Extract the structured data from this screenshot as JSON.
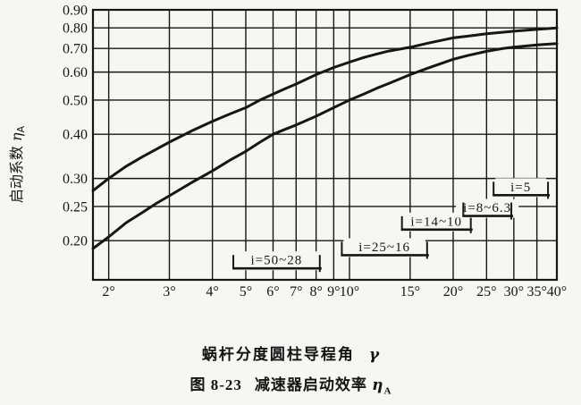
{
  "figure": {
    "caption_number": "图 8-23",
    "caption_title": "减速器启动效率",
    "caption_symbol": "η",
    "caption_symbol_sub": "A"
  },
  "chart_data": {
    "type": "line",
    "title": "减速器启动效率 ηA",
    "grid": true,
    "x_axis": {
      "title": "蜗杆分度圆柱导程角",
      "title_symbol": "γ",
      "scale": "log",
      "range": [
        1.8,
        40
      ],
      "ticks": [
        2,
        3,
        4,
        5,
        6,
        7,
        8,
        9,
        10,
        15,
        20,
        25,
        30,
        35,
        40
      ],
      "tick_labels": [
        "2°",
        "3°",
        "4°",
        "5°",
        "6°",
        "7°",
        "8°",
        "9°",
        "10°",
        "15°",
        "20°",
        "25°",
        "30°",
        "35°",
        "40°"
      ]
    },
    "y_axis": {
      "title": "启动系数",
      "symbol": "η",
      "symbol_sub": "A",
      "scale": "log",
      "range": [
        0.155,
        0.9
      ],
      "ticks": [
        0.9,
        0.8,
        0.7,
        0.6,
        0.5,
        0.4,
        0.3,
        0.25,
        0.2
      ],
      "tick_labels": [
        "0.90",
        "0.80",
        "0.70",
        "0.60",
        "0.50",
        "0.40",
        "0.30",
        "0.25",
        "0.20"
      ]
    },
    "series": [
      {
        "name": "upper-curve",
        "points": [
          [
            1.8,
            0.277
          ],
          [
            2,
            0.3
          ],
          [
            2.25,
            0.325
          ],
          [
            2.5,
            0.345
          ],
          [
            2.75,
            0.363
          ],
          [
            3,
            0.38
          ],
          [
            3.5,
            0.41
          ],
          [
            4,
            0.435
          ],
          [
            4.5,
            0.457
          ],
          [
            5,
            0.476
          ],
          [
            5.5,
            0.5
          ],
          [
            6,
            0.52
          ],
          [
            6.5,
            0.538
          ],
          [
            7,
            0.555
          ],
          [
            8,
            0.59
          ],
          [
            9,
            0.618
          ],
          [
            10,
            0.64
          ],
          [
            11,
            0.66
          ],
          [
            12,
            0.675
          ],
          [
            13,
            0.688
          ],
          [
            15,
            0.705
          ],
          [
            17,
            0.725
          ],
          [
            20,
            0.75
          ],
          [
            22,
            0.758
          ],
          [
            25,
            0.77
          ],
          [
            28,
            0.778
          ],
          [
            30,
            0.783
          ],
          [
            35,
            0.792
          ],
          [
            40,
            0.8
          ]
        ]
      },
      {
        "name": "lower-curve",
        "points": [
          [
            1.8,
            0.19
          ],
          [
            2,
            0.205
          ],
          [
            2.25,
            0.225
          ],
          [
            2.5,
            0.24
          ],
          [
            2.75,
            0.255
          ],
          [
            3,
            0.268
          ],
          [
            3.5,
            0.293
          ],
          [
            4,
            0.315
          ],
          [
            4.5,
            0.338
          ],
          [
            5,
            0.358
          ],
          [
            5.5,
            0.38
          ],
          [
            6,
            0.4
          ],
          [
            6.5,
            0.413
          ],
          [
            7,
            0.425
          ],
          [
            8,
            0.45
          ],
          [
            9,
            0.476
          ],
          [
            10,
            0.5
          ],
          [
            11,
            0.52
          ],
          [
            12,
            0.54
          ],
          [
            13,
            0.557
          ],
          [
            15,
            0.59
          ],
          [
            17,
            0.617
          ],
          [
            20,
            0.652
          ],
          [
            22,
            0.668
          ],
          [
            25,
            0.687
          ],
          [
            28,
            0.7
          ],
          [
            30,
            0.706
          ],
          [
            35,
            0.716
          ],
          [
            40,
            0.722
          ]
        ]
      }
    ],
    "annotations": [
      {
        "label": "i=50~28",
        "gamma_from": 4.6,
        "gamma_to": 8.2,
        "eta_level": 0.167
      },
      {
        "label": "i=25~16",
        "gamma_from": 9.5,
        "gamma_to": 16.8,
        "eta_level": 0.182
      },
      {
        "label": "i=14~10",
        "gamma_from": 14.2,
        "gamma_to": 22.5,
        "eta_level": 0.215
      },
      {
        "label": "i=8~6.3",
        "gamma_from": 21.4,
        "gamma_to": 29.5,
        "eta_level": 0.235
      },
      {
        "label": "i=5",
        "gamma_from": 26.2,
        "gamma_to": 37.7,
        "eta_level": 0.269
      }
    ],
    "ink_color": "#161616",
    "background_color": "#f7f6f2"
  }
}
